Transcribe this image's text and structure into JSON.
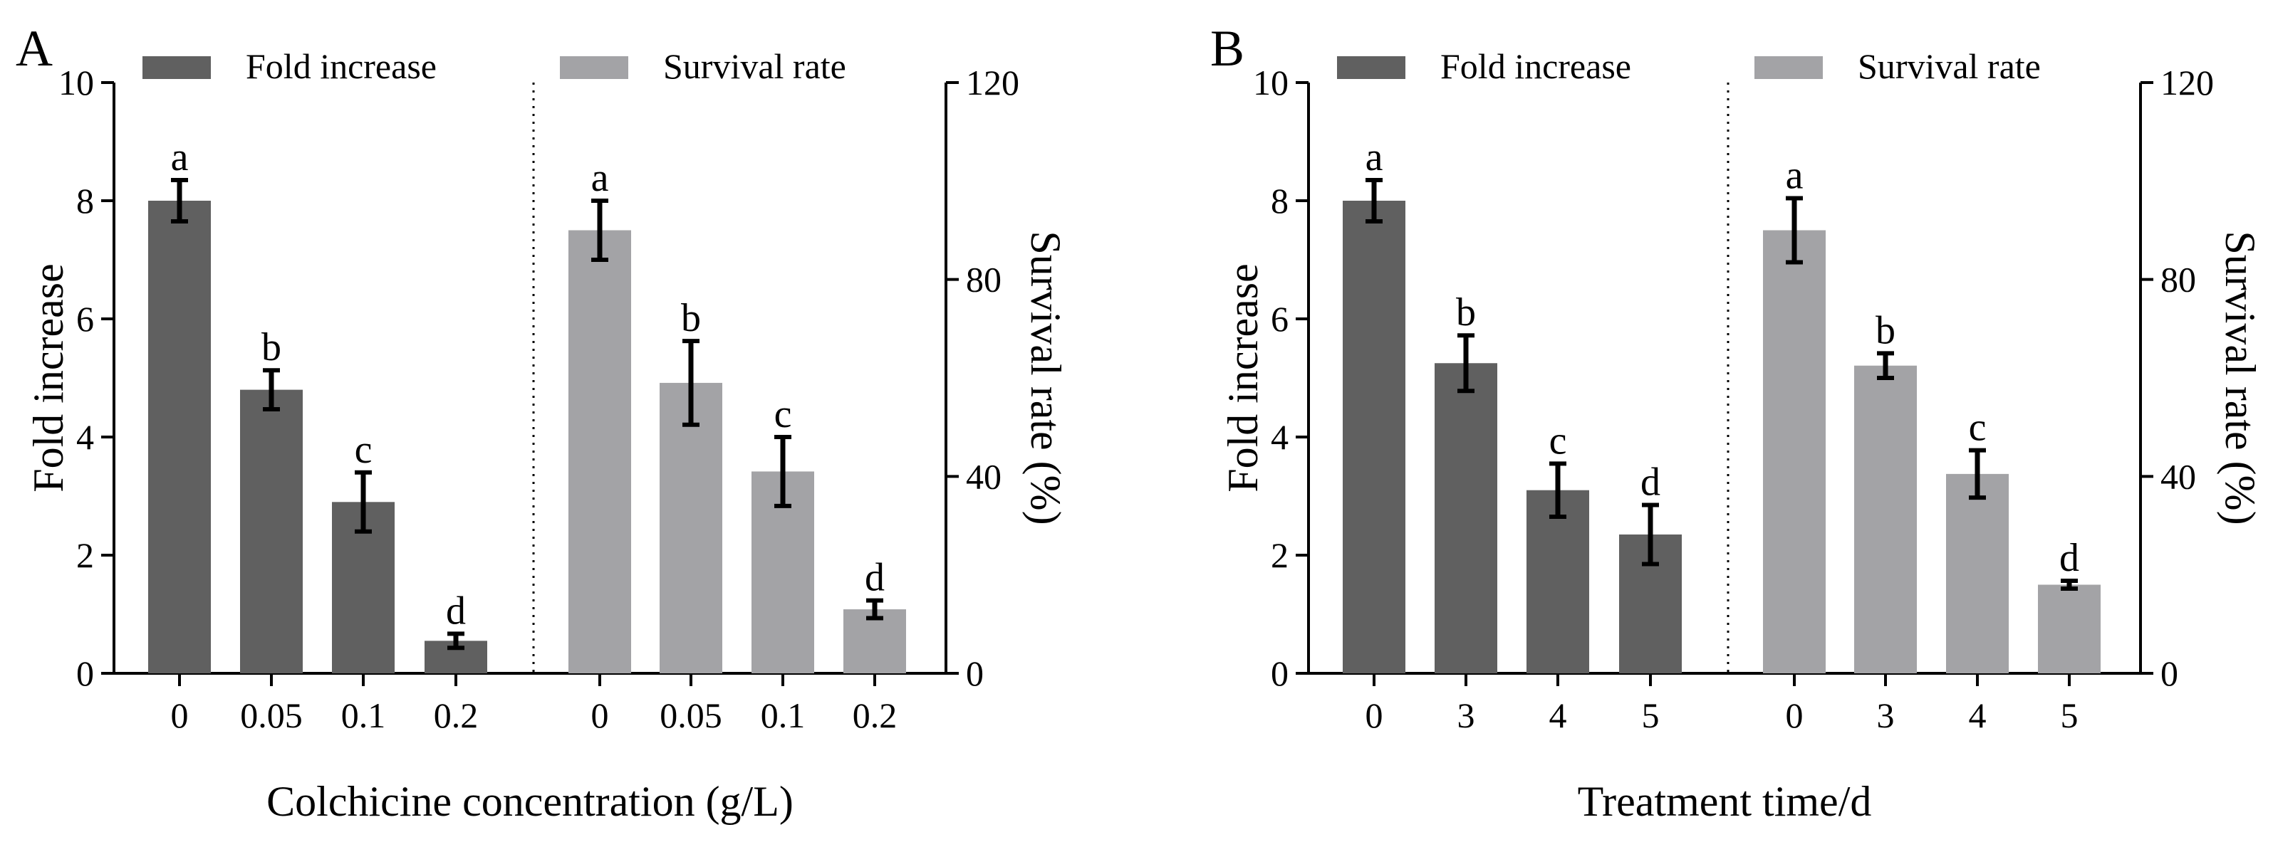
{
  "chart_data": [
    {
      "type": "bar",
      "panel_label": "A",
      "xlabel": "Colchicine concentration (g/L)",
      "legend": [
        "Fold increase",
        "Survival rate"
      ],
      "left_axis": {
        "label": "Fold increase",
        "ylim": [
          0,
          10
        ],
        "ticks": [
          0,
          2,
          4,
          6,
          8,
          10
        ]
      },
      "right_axis": {
        "label": "Survival rate (%)",
        "ylim": [
          0,
          120
        ],
        "ticks": [
          0,
          40,
          80,
          120
        ]
      },
      "series": [
        {
          "name": "Fold increase",
          "axis": "left",
          "color": "#606060",
          "categories": [
            "0",
            "0.05",
            "0.1",
            "0.2"
          ],
          "values": [
            8.0,
            4.8,
            2.9,
            0.55
          ],
          "errors": [
            0.35,
            0.33,
            0.5,
            0.12
          ],
          "letters": [
            "a",
            "b",
            "c",
            "d"
          ]
        },
        {
          "name": "Survival rate",
          "axis": "right",
          "color": "#a3a3a6",
          "categories": [
            "0",
            "0.05",
            "0.1",
            "0.2"
          ],
          "values": [
            90,
            59,
            41,
            13
          ],
          "errors": [
            6.0,
            8.5,
            7.0,
            1.8
          ],
          "letters": [
            "a",
            "b",
            "c",
            "d"
          ]
        }
      ]
    },
    {
      "type": "bar",
      "panel_label": "B",
      "xlabel": "Treatment time/d",
      "legend": [
        "Fold increase",
        "Survival rate"
      ],
      "left_axis": {
        "label": "Fold increase",
        "ylim": [
          0,
          10
        ],
        "ticks": [
          0,
          2,
          4,
          6,
          8,
          10
        ]
      },
      "right_axis": {
        "label": "Survival rate (%)",
        "ylim": [
          0,
          120
        ],
        "ticks": [
          0,
          40,
          80,
          120
        ]
      },
      "series": [
        {
          "name": "Fold increase",
          "axis": "left",
          "color": "#606060",
          "categories": [
            "0",
            "3",
            "4",
            "5"
          ],
          "values": [
            8.0,
            5.25,
            3.1,
            2.35
          ],
          "errors": [
            0.35,
            0.47,
            0.45,
            0.5
          ],
          "letters": [
            "a",
            "b",
            "c",
            "d"
          ]
        },
        {
          "name": "Survival rate",
          "axis": "right",
          "color": "#a3a3a6",
          "categories": [
            "0",
            "3",
            "4",
            "5"
          ],
          "values": [
            90,
            62.5,
            40.5,
            18
          ],
          "errors": [
            6.5,
            2.5,
            4.8,
            0.8
          ],
          "letters": [
            "a",
            "b",
            "c",
            "d"
          ]
        }
      ]
    }
  ]
}
